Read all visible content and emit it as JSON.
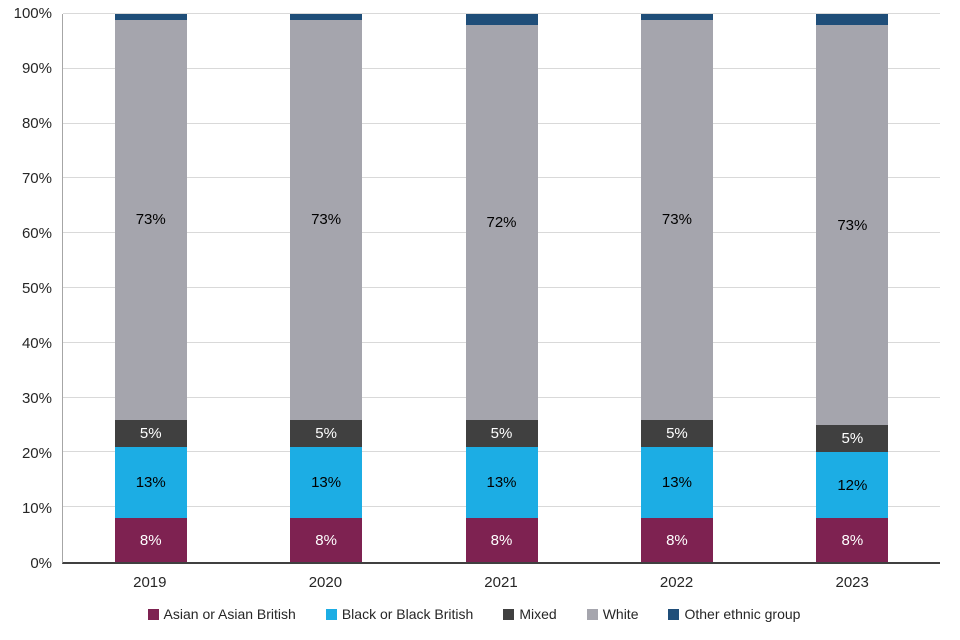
{
  "chart_data": {
    "type": "bar",
    "stacked": true,
    "title": "",
    "xlabel": "",
    "ylabel": "",
    "ylim": [
      0,
      100
    ],
    "grid": true,
    "legend_position": "bottom",
    "yticks": [
      "0%",
      "10%",
      "20%",
      "30%",
      "40%",
      "50%",
      "60%",
      "70%",
      "80%",
      "90%",
      "100%"
    ],
    "categories": [
      "2019",
      "2020",
      "2021",
      "2022",
      "2023"
    ],
    "series": [
      {
        "name": "Asian or Asian British",
        "color": "#7E2251",
        "label_color": "#FFFFFF",
        "values": [
          8,
          8,
          8,
          8,
          8
        ],
        "data_labels": [
          "8%",
          "8%",
          "8%",
          "8%",
          "8%"
        ]
      },
      {
        "name": "Black or Black British",
        "color": "#1CADE4",
        "label_color": "#000000",
        "values": [
          13,
          13,
          13,
          13,
          12
        ],
        "data_labels": [
          "13%",
          "13%",
          "13%",
          "13%",
          "12%"
        ]
      },
      {
        "name": "Mixed",
        "color": "#404040",
        "label_color": "#FFFFFF",
        "values": [
          5,
          5,
          5,
          5,
          5
        ],
        "data_labels": [
          "5%",
          "5%",
          "5%",
          "5%",
          "5%"
        ]
      },
      {
        "name": "White",
        "color": "#A5A5AD",
        "label_color": "#000000",
        "values": [
          73,
          73,
          72,
          73,
          73
        ],
        "data_labels": [
          "73%",
          "73%",
          "72%",
          "73%",
          "73%"
        ]
      },
      {
        "name": "Other ethnic group",
        "color": "#1F4E79",
        "label_color": "#FFFFFF",
        "values": [
          1,
          1,
          2,
          1,
          2
        ],
        "data_labels": [
          "",
          "",
          "",
          "",
          ""
        ]
      }
    ]
  }
}
